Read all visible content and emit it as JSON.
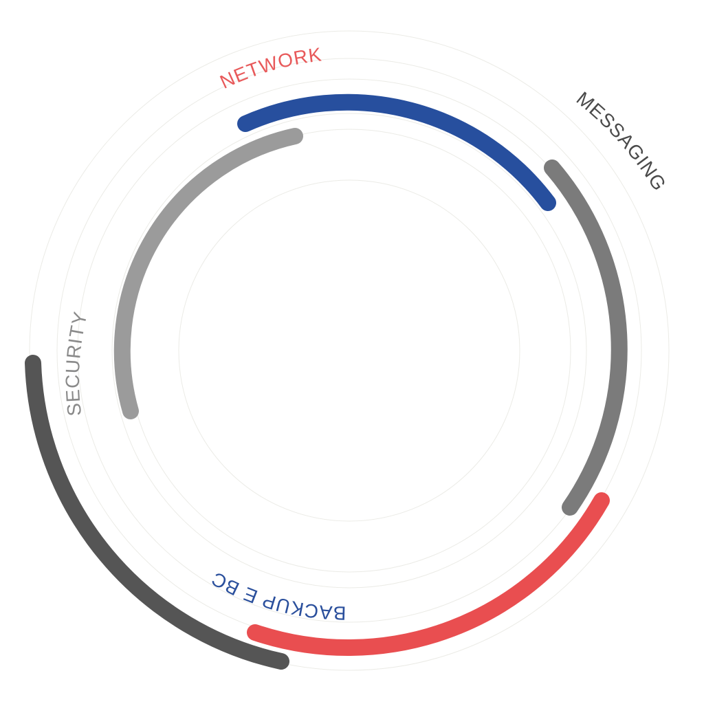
{
  "diagram": {
    "labels": {
      "network": "NETWORK",
      "messaging": "MESSAGING",
      "security": "SECURITY",
      "backup": "BACKUP E BC"
    },
    "colors": {
      "background": "#ffffff",
      "guide_rings": "#ebebe6",
      "network_label": "#e8595a",
      "messaging_label": "#4a4a4a",
      "security_label": "#8a8a8a",
      "backup_label": "#2a4f9c",
      "arc_blue": "#274f9e",
      "arc_gray_mid": "#7b7b7b",
      "arc_gray_light": "#9b9b9b",
      "arc_gray_dark": "#555555",
      "arc_red": "#e94e50"
    }
  }
}
